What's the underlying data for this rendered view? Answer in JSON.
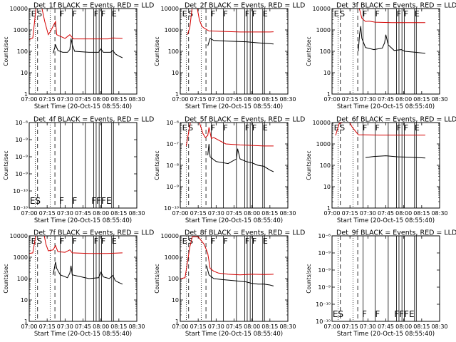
{
  "figure": {
    "time_range": [
      "07:00",
      "08:30"
    ],
    "x_ticks": [
      "07:00",
      "07:15",
      "07:30",
      "07:45",
      "08:00",
      "08:15",
      "08:30"
    ],
    "xlabel": "Start Time (20-Oct-15 08:55:40)",
    "ylabel": "Counts/sec",
    "colors": {
      "events": "#000000",
      "lld": "#d40000",
      "axes": "#000000"
    }
  },
  "chart_data": [
    {
      "type": "line",
      "title": "Det_1f BLACK = Events, RED = LLD",
      "y_scale": "log",
      "ylim": [
        1,
        10000
      ],
      "y_ticks": [
        "1",
        "10",
        "100",
        "1000",
        "10000"
      ],
      "has_data": true,
      "markers": [
        "E",
        "S",
        "F",
        "F",
        "F",
        "F",
        "E"
      ],
      "series": [
        {
          "color": "#d40000",
          "points": [
            [
              0,
              350
            ],
            [
              3,
              420
            ],
            [
              6,
              15000
            ],
            [
              10,
              15000
            ],
            [
              13,
              2500
            ],
            [
              16,
              600
            ],
            [
              18,
              900
            ],
            [
              22,
              2500
            ],
            [
              23,
              600
            ],
            [
              30,
              400
            ],
            [
              34,
              600
            ],
            [
              37,
              380
            ],
            [
              50,
              380
            ],
            [
              60,
              380
            ],
            [
              66,
              380
            ],
            [
              70,
              420
            ],
            [
              78,
              400
            ]
          ]
        },
        {
          "color": "#000000",
          "points": [
            [
              0,
              0
            ],
            [
              20,
              80
            ],
            [
              22,
              200
            ],
            [
              24,
              110
            ],
            [
              28,
              90
            ],
            [
              32,
              90
            ],
            [
              34,
              120
            ],
            [
              35,
              400
            ],
            [
              36,
              200
            ],
            [
              38,
              100
            ],
            [
              50,
              90
            ],
            [
              58,
              90
            ],
            [
              60,
              130
            ],
            [
              62,
              90
            ],
            [
              68,
              90
            ],
            [
              70,
              110
            ],
            [
              72,
              75
            ],
            [
              75,
              60
            ],
            [
              78,
              50
            ]
          ]
        }
      ]
    },
    {
      "type": "line",
      "title": "Det_2f BLACK = Events, RED = LLD",
      "y_scale": "log",
      "ylim": [
        1,
        10000
      ],
      "y_ticks": [
        "1",
        "10",
        "100",
        "1000",
        "10000"
      ],
      "has_data": true,
      "markers": [
        "E",
        "S",
        "F",
        "F",
        "F",
        "F",
        "E"
      ],
      "series": [
        {
          "color": "#d40000",
          "points": [
            [
              0,
              0
            ],
            [
              6,
              600
            ],
            [
              8,
              1300
            ],
            [
              10,
              12000
            ],
            [
              14,
              12000
            ],
            [
              16,
              3000
            ],
            [
              18,
              1500
            ],
            [
              20,
              1200
            ],
            [
              24,
              900
            ],
            [
              36,
              850
            ],
            [
              50,
              800
            ],
            [
              60,
              800
            ],
            [
              75,
              800
            ],
            [
              78,
              820
            ]
          ]
        },
        {
          "color": "#000000",
          "points": [
            [
              0,
              0
            ],
            [
              23,
              180
            ],
            [
              25,
              400
            ],
            [
              28,
              320
            ],
            [
              40,
              300
            ],
            [
              55,
              280
            ],
            [
              65,
              250
            ],
            [
              78,
              220
            ]
          ]
        }
      ]
    },
    {
      "type": "line",
      "title": "Det_3f BLACK = Events, RED = LLD",
      "y_scale": "log",
      "ylim": [
        1,
        10000
      ],
      "y_ticks": [
        "1",
        "10",
        "100",
        "1000",
        "10000"
      ],
      "has_data": true,
      "markers": [
        "E",
        "S",
        "F",
        "F",
        "F",
        "F",
        "E"
      ],
      "series": [
        {
          "color": "#d40000",
          "points": [
            [
              0,
              0
            ],
            [
              12,
              15000
            ],
            [
              22,
              15000
            ],
            [
              25,
              3500
            ],
            [
              28,
              2500
            ],
            [
              31,
              2600
            ],
            [
              36,
              2300
            ],
            [
              50,
              2200
            ],
            [
              65,
              2200
            ],
            [
              78,
              2200
            ]
          ]
        },
        {
          "color": "#000000",
          "points": [
            [
              0,
              0
            ],
            [
              22,
              100
            ],
            [
              23,
              600
            ],
            [
              24,
              1500
            ],
            [
              25,
              400
            ],
            [
              28,
              150
            ],
            [
              35,
              120
            ],
            [
              42,
              140
            ],
            [
              44,
              250
            ],
            [
              45,
              600
            ],
            [
              47,
              200
            ],
            [
              52,
              110
            ],
            [
              58,
              120
            ],
            [
              61,
              100
            ],
            [
              70,
              90
            ],
            [
              78,
              80
            ]
          ]
        }
      ]
    },
    {
      "type": "line",
      "title": "Det_4f BLACK = Events, RED = LLD",
      "y_scale": "log",
      "ylim": [
        1e-10,
        1e-08
      ],
      "y_ticks": [
        "10⁻¹⁰",
        "10⁻¹⁰",
        "10⁻⁹",
        "10⁻⁹",
        "10⁻⁹",
        "10⁻⁸"
      ],
      "has_data": false,
      "markers": [
        "E",
        "S",
        "F",
        "F",
        "FFFE"
      ],
      "series": []
    },
    {
      "type": "line",
      "title": "Det_5f BLACK = Events, RED = LLD",
      "y_scale": "log",
      "ylim": [
        1e-10,
        1e-06
      ],
      "y_ticks": [
        "10⁻¹⁰",
        "10⁻⁹",
        "10⁻⁸",
        "10⁻⁷",
        "10⁻⁶"
      ],
      "has_data": true,
      "markers": [
        "E",
        "S",
        "F",
        "F",
        "F",
        "F",
        "E"
      ],
      "series": [
        {
          "color": "#d40000",
          "points": [
            [
              0,
              0
            ],
            [
              5,
              8e-08
            ],
            [
              9,
              1.5e-06
            ],
            [
              15,
              1.5e-06
            ],
            [
              19,
              3e-07
            ],
            [
              21,
              2e-07
            ],
            [
              23,
              2.5e-07
            ],
            [
              24,
              6e-07
            ],
            [
              26,
              1.8e-07
            ],
            [
              28,
              2e-07
            ],
            [
              38,
              1e-07
            ],
            [
              50,
              9e-08
            ],
            [
              60,
              8.5e-08
            ],
            [
              70,
              8e-08
            ],
            [
              78,
              8e-08
            ]
          ]
        },
        {
          "color": "#000000",
          "points": [
            [
              0,
              0
            ],
            [
              23,
              3e-08
            ],
            [
              24,
              1e-07
            ],
            [
              25,
              2.5e-08
            ],
            [
              30,
              1.5e-08
            ],
            [
              40,
              1.2e-08
            ],
            [
              47,
              2e-08
            ],
            [
              48,
              6e-08
            ],
            [
              50,
              2e-08
            ],
            [
              55,
              1.5e-08
            ],
            [
              60,
              1.3e-08
            ],
            [
              65,
              1e-08
            ],
            [
              70,
              9e-09
            ],
            [
              75,
              6e-09
            ],
            [
              78,
              5e-09
            ]
          ]
        }
      ]
    },
    {
      "type": "line",
      "title": "Det_6f BLACK = Events, RED = LLD",
      "y_scale": "log",
      "ylim": [
        1,
        10000
      ],
      "y_ticks": [
        "1",
        "10",
        "100",
        "1000",
        "10000"
      ],
      "has_data": true,
      "markers": [
        "E",
        "S",
        "F",
        "F",
        "F",
        "F",
        "E"
      ],
      "series": [
        {
          "color": "#d40000",
          "points": [
            [
              0,
              0
            ],
            [
              3,
              2500
            ],
            [
              6,
              9000
            ],
            [
              14,
              12000
            ],
            [
              17,
              6000
            ],
            [
              22,
              2700
            ],
            [
              40,
              2600
            ],
            [
              60,
              2600
            ],
            [
              78,
              2600
            ]
          ]
        },
        {
          "color": "#000000",
          "points": [
            [
              0,
              0
            ],
            [
              28,
              230
            ],
            [
              35,
              260
            ],
            [
              45,
              280
            ],
            [
              55,
              250
            ],
            [
              65,
              240
            ],
            [
              78,
              220
            ]
          ]
        }
      ]
    },
    {
      "type": "line",
      "title": "Det_7f BLACK = Events, RED = LLD",
      "y_scale": "log",
      "ylim": [
        1,
        10000
      ],
      "y_ticks": [
        "1",
        "10",
        "100",
        "1000",
        "10000"
      ],
      "has_data": true,
      "markers": [
        "E",
        "S",
        "F",
        "F",
        "F",
        "F",
        "E"
      ],
      "series": [
        {
          "color": "#d40000",
          "points": [
            [
              0,
              1500
            ],
            [
              3,
              1600
            ],
            [
              6,
              15000
            ],
            [
              12,
              15000
            ],
            [
              14,
              4000
            ],
            [
              16,
              2000
            ],
            [
              20,
              2200
            ],
            [
              22,
              3500
            ],
            [
              24,
              1800
            ],
            [
              30,
              1700
            ],
            [
              34,
              2200
            ],
            [
              36,
              1600
            ],
            [
              50,
              1500
            ],
            [
              65,
              1500
            ],
            [
              78,
              1600
            ]
          ]
        },
        {
          "color": "#000000",
          "points": [
            [
              0,
              0
            ],
            [
              20,
              150
            ],
            [
              22,
              600
            ],
            [
              23,
              300
            ],
            [
              26,
              150
            ],
            [
              32,
              110
            ],
            [
              34,
              180
            ],
            [
              35,
              400
            ],
            [
              36,
              150
            ],
            [
              50,
              100
            ],
            [
              58,
              110
            ],
            [
              60,
              200
            ],
            [
              62,
              120
            ],
            [
              67,
              100
            ],
            [
              70,
              140
            ],
            [
              72,
              80
            ],
            [
              75,
              65
            ],
            [
              78,
              55
            ]
          ]
        }
      ]
    },
    {
      "type": "line",
      "title": "Det_8f BLACK = Events, RED = LLD",
      "y_scale": "log",
      "ylim": [
        1,
        10000
      ],
      "y_ticks": [
        "1",
        "10",
        "100",
        "1000",
        "10000"
      ],
      "has_data": true,
      "markers": [
        "E",
        "S",
        "F",
        "F",
        "F",
        "F",
        "E"
      ],
      "series": [
        {
          "color": "#d40000",
          "points": [
            [
              0,
              100
            ],
            [
              4,
              110
            ],
            [
              8,
              3000
            ],
            [
              10,
              9000
            ],
            [
              15,
              9000
            ],
            [
              20,
              4000
            ],
            [
              23,
              1500
            ],
            [
              25,
              300
            ],
            [
              28,
              220
            ],
            [
              32,
              180
            ],
            [
              40,
              160
            ],
            [
              50,
              150
            ],
            [
              60,
              160
            ],
            [
              70,
              155
            ],
            [
              78,
              160
            ]
          ]
        },
        {
          "color": "#000000",
          "points": [
            [
              0,
              0
            ],
            [
              22,
              400
            ],
            [
              24,
              150
            ],
            [
              28,
              100
            ],
            [
              35,
              90
            ],
            [
              45,
              80
            ],
            [
              55,
              70
            ],
            [
              60,
              60
            ],
            [
              65,
              55
            ],
            [
              70,
              55
            ],
            [
              75,
              50
            ],
            [
              78,
              45
            ]
          ]
        }
      ]
    },
    {
      "type": "line",
      "title": "Det_9f BLACK = Events, RED = LLD",
      "y_scale": "log",
      "ylim": [
        1e-10,
        1e-08
      ],
      "y_ticks": [
        "10⁻¹⁰",
        "10⁻¹⁰",
        "10⁻⁹",
        "10⁻⁹",
        "10⁻⁹",
        "10⁻⁸"
      ],
      "has_data": false,
      "markers": [
        "E",
        "S",
        "F",
        "F",
        "FFFE"
      ],
      "series": []
    }
  ]
}
